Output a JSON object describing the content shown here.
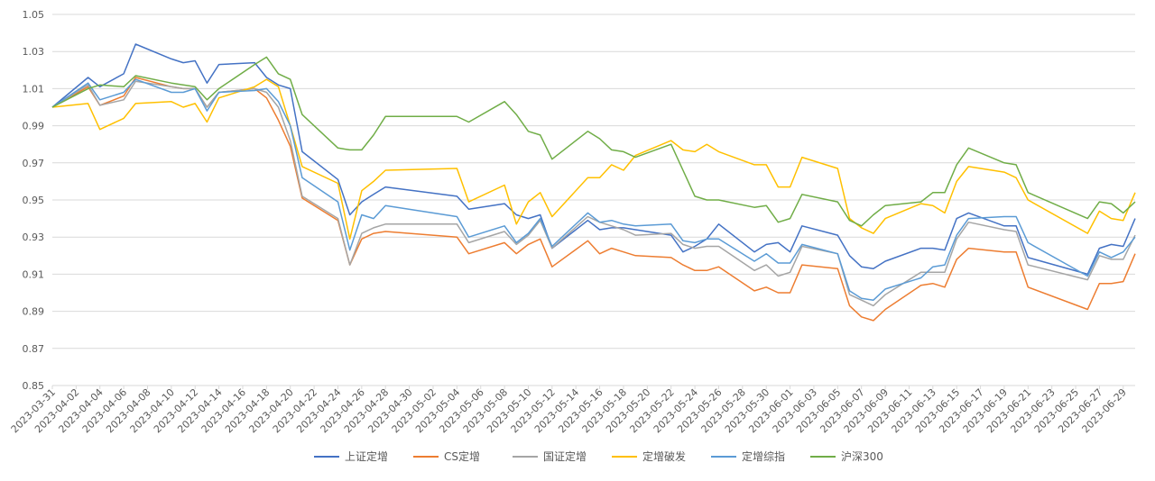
{
  "chart_data": {
    "type": "line",
    "title": "",
    "xlabel": "",
    "ylabel": "",
    "ylim": [
      0.85,
      1.05
    ],
    "y_ticks": [
      "0.85",
      "0.87",
      "0.89",
      "0.91",
      "0.93",
      "0.95",
      "0.97",
      "0.99",
      "1.01",
      "1.03",
      "1.05"
    ],
    "grid": "horizontal",
    "legend_position": "bottom",
    "x_labels": [
      "2023-03-31",
      "2023-04-02",
      "2023-04-04",
      "2023-04-06",
      "2023-04-08",
      "2023-04-10",
      "2023-04-12",
      "2023-04-14",
      "2023-04-16",
      "2023-04-18",
      "2023-04-20",
      "2023-04-22",
      "2023-04-24",
      "2023-04-26",
      "2023-04-28",
      "2023-04-30",
      "2023-05-02",
      "2023-05-04",
      "2023-05-06",
      "2023-05-08",
      "2023-05-10",
      "2023-05-12",
      "2023-05-14",
      "2023-05-16",
      "2023-05-18",
      "2023-05-20",
      "2023-05-22",
      "2023-05-24",
      "2023-05-26",
      "2023-05-28",
      "2023-05-30",
      "2023-06-01",
      "2023-06-03",
      "2023-06-05",
      "2023-06-07",
      "2023-06-09",
      "2023-06-11",
      "2023-06-13",
      "2023-06-15",
      "2023-06-17",
      "2023-06-19",
      "2023-06-21",
      "2023-06-23",
      "2023-06-25",
      "2023-06-27",
      "2023-06-29"
    ],
    "x": [
      "2023-03-31",
      "2023-04-03",
      "2023-04-04",
      "2023-04-06",
      "2023-04-07",
      "2023-04-10",
      "2023-04-11",
      "2023-04-12",
      "2023-04-13",
      "2023-04-14",
      "2023-04-17",
      "2023-04-18",
      "2023-04-19",
      "2023-04-20",
      "2023-04-21",
      "2023-04-24",
      "2023-04-25",
      "2023-04-26",
      "2023-04-27",
      "2023-04-28",
      "2023-05-04",
      "2023-05-05",
      "2023-05-08",
      "2023-05-09",
      "2023-05-10",
      "2023-05-11",
      "2023-05-12",
      "2023-05-15",
      "2023-05-16",
      "2023-05-17",
      "2023-05-18",
      "2023-05-19",
      "2023-05-22",
      "2023-05-23",
      "2023-05-24",
      "2023-05-25",
      "2023-05-26",
      "2023-05-29",
      "2023-05-30",
      "2023-05-31",
      "2023-06-01",
      "2023-06-02",
      "2023-06-05",
      "2023-06-06",
      "2023-06-07",
      "2023-06-08",
      "2023-06-09",
      "2023-06-12",
      "2023-06-13",
      "2023-06-14",
      "2023-06-15",
      "2023-06-16",
      "2023-06-19",
      "2023-06-20",
      "2023-06-21",
      "2023-06-26",
      "2023-06-27",
      "2023-06-28",
      "2023-06-29",
      "2023-06-30"
    ],
    "series": [
      {
        "name": "上证定增",
        "color": "#4472C4",
        "values": [
          1.0,
          1.016,
          1.011,
          1.018,
          1.034,
          1.026,
          1.024,
          1.025,
          1.013,
          1.023,
          1.024,
          1.016,
          1.012,
          1.01,
          0.976,
          0.961,
          0.942,
          0.949,
          0.953,
          0.957,
          0.952,
          0.945,
          0.948,
          0.942,
          0.94,
          0.942,
          0.924,
          0.939,
          0.934,
          0.935,
          0.935,
          0.934,
          0.931,
          0.922,
          0.925,
          0.929,
          0.937,
          0.922,
          0.926,
          0.927,
          0.922,
          0.936,
          0.931,
          0.92,
          0.914,
          0.913,
          0.917,
          0.924,
          0.924,
          0.923,
          0.94,
          0.943,
          0.936,
          0.936,
          0.919,
          0.91,
          0.924,
          0.926,
          0.925,
          0.94
        ]
      },
      {
        "name": "CS定增",
        "color": "#ED7D31",
        "values": [
          1.0,
          1.011,
          1.001,
          1.006,
          1.016,
          1.011,
          1.01,
          1.01,
          1.0,
          1.008,
          1.01,
          1.005,
          0.993,
          0.979,
          0.951,
          0.939,
          0.915,
          0.929,
          0.932,
          0.933,
          0.93,
          0.921,
          0.927,
          0.921,
          0.926,
          0.929,
          0.914,
          0.928,
          0.921,
          0.924,
          0.922,
          0.92,
          0.919,
          0.915,
          0.912,
          0.912,
          0.914,
          0.901,
          0.903,
          0.9,
          0.9,
          0.915,
          0.913,
          0.893,
          0.887,
          0.885,
          0.891,
          0.904,
          0.905,
          0.903,
          0.918,
          0.924,
          0.922,
          0.922,
          0.903,
          0.891,
          0.905,
          0.905,
          0.906,
          0.921
        ]
      },
      {
        "name": "国证定增",
        "color": "#A5A5A5",
        "values": [
          1.0,
          1.012,
          1.001,
          1.004,
          1.014,
          1.011,
          1.01,
          1.01,
          1.0,
          1.008,
          1.01,
          1.008,
          1.0,
          0.982,
          0.952,
          0.94,
          0.915,
          0.932,
          0.935,
          0.937,
          0.937,
          0.927,
          0.933,
          0.926,
          0.931,
          0.939,
          0.924,
          0.941,
          0.938,
          0.936,
          0.934,
          0.931,
          0.932,
          0.926,
          0.924,
          0.925,
          0.925,
          0.912,
          0.915,
          0.909,
          0.911,
          0.925,
          0.921,
          0.899,
          0.896,
          0.893,
          0.899,
          0.911,
          0.911,
          0.911,
          0.929,
          0.938,
          0.934,
          0.933,
          0.915,
          0.907,
          0.92,
          0.918,
          0.918,
          0.931
        ]
      },
      {
        "name": "定增破发",
        "color": "#FFC000",
        "values": [
          1.0,
          1.002,
          0.988,
          0.994,
          1.002,
          1.003,
          1.0,
          1.002,
          0.992,
          1.005,
          1.011,
          1.015,
          1.011,
          0.99,
          0.968,
          0.959,
          0.929,
          0.955,
          0.96,
          0.966,
          0.967,
          0.949,
          0.958,
          0.937,
          0.949,
          0.954,
          0.941,
          0.962,
          0.962,
          0.969,
          0.966,
          0.974,
          0.982,
          0.977,
          0.976,
          0.98,
          0.976,
          0.969,
          0.969,
          0.957,
          0.957,
          0.973,
          0.967,
          0.94,
          0.935,
          0.932,
          0.94,
          0.948,
          0.947,
          0.943,
          0.96,
          0.968,
          0.965,
          0.962,
          0.95,
          0.932,
          0.944,
          0.94,
          0.939,
          0.954
        ]
      },
      {
        "name": "定增综指",
        "color": "#5B9BD5",
        "values": [
          1.0,
          1.013,
          1.004,
          1.008,
          1.015,
          1.008,
          1.008,
          1.01,
          0.998,
          1.008,
          1.009,
          1.01,
          1.003,
          0.99,
          0.962,
          0.949,
          0.923,
          0.942,
          0.94,
          0.947,
          0.941,
          0.93,
          0.936,
          0.927,
          0.932,
          0.94,
          0.925,
          0.943,
          0.938,
          0.939,
          0.937,
          0.936,
          0.937,
          0.928,
          0.927,
          0.929,
          0.929,
          0.917,
          0.921,
          0.916,
          0.916,
          0.926,
          0.921,
          0.901,
          0.897,
          0.896,
          0.902,
          0.908,
          0.914,
          0.915,
          0.931,
          0.94,
          0.941,
          0.941,
          0.927,
          0.909,
          0.922,
          0.919,
          0.922,
          0.93
        ]
      },
      {
        "name": "沪深300",
        "color": "#70AD47",
        "values": [
          1.0,
          1.01,
          1.012,
          1.011,
          1.017,
          1.013,
          1.012,
          1.011,
          1.004,
          1.01,
          1.023,
          1.027,
          1.018,
          1.015,
          0.996,
          0.978,
          0.977,
          0.977,
          0.985,
          0.995,
          0.995,
          0.992,
          1.003,
          0.996,
          0.987,
          0.985,
          0.972,
          0.987,
          0.983,
          0.977,
          0.976,
          0.973,
          0.98,
          0.966,
          0.952,
          0.95,
          0.95,
          0.946,
          0.947,
          0.938,
          0.94,
          0.953,
          0.949,
          0.939,
          0.936,
          0.942,
          0.947,
          0.949,
          0.954,
          0.954,
          0.969,
          0.978,
          0.97,
          0.969,
          0.954,
          0.94,
          0.949,
          0.948,
          0.943,
          0.949
        ]
      }
    ]
  }
}
